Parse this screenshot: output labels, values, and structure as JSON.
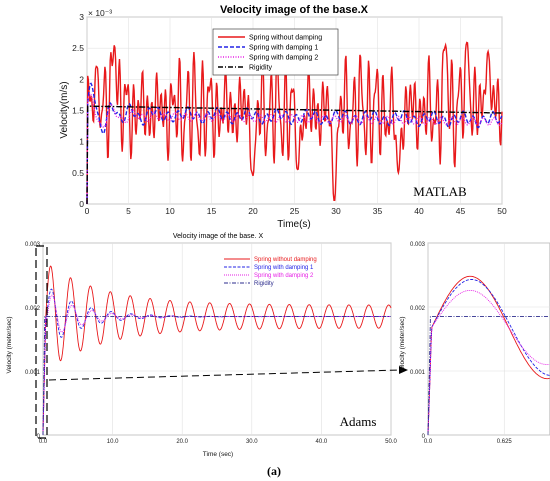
{
  "colors": {
    "spring_no_damping": "#e8191b",
    "spring_damping_1": "#2323e6",
    "spring_damping_2": "#e61ee6",
    "rigidity": "#000000",
    "adams_rigidity": "#2b2b8c"
  },
  "chart_data": [
    {
      "id": "matlab",
      "type": "line",
      "title": "Velocity image of the base.X",
      "xlabel": "Time(s)",
      "ylabel": "Velocity(m/s)",
      "exponent_label": "× 10⁻³",
      "tag": "MATLAB",
      "xlim": [
        0,
        50
      ],
      "ylim": [
        0,
        3
      ],
      "xticks": [
        "0",
        "5",
        "10",
        "15",
        "20",
        "25",
        "30",
        "35",
        "40",
        "45",
        "50"
      ],
      "yticks": [
        "0",
        "0.5",
        "1",
        "1.5",
        "2",
        "2.5",
        "3"
      ],
      "grid": true,
      "legend_position": "top-center",
      "series": [
        {
          "name": "Spring without damping",
          "style": "solid"
        },
        {
          "name": "Spring with damping 1",
          "style": "dashed"
        },
        {
          "name": "Spring with damping 2",
          "style": "dotted"
        },
        {
          "name": "Rigidity",
          "style": "dashdot"
        }
      ]
    },
    {
      "id": "adams",
      "type": "line",
      "title": "Velocity image of the base. X",
      "xlabel": "Time (sec)",
      "ylabel": "Velocity (meter/sec)",
      "tag": "Adams",
      "xlim": [
        0,
        50
      ],
      "ylim": [
        0,
        0.003
      ],
      "xticks": [
        "0.0",
        "10.0",
        "20.0",
        "30.0",
        "40.0",
        "50.0"
      ],
      "yticks": [
        "0",
        "0.001",
        "0.002",
        "0.003"
      ],
      "grid": true,
      "legend_position": "top-right",
      "series": [
        {
          "name": "Spring without damping",
          "style": "solid"
        },
        {
          "name": "Spring with damping 1",
          "style": "dashed"
        },
        {
          "name": "Spring with damping 2",
          "style": "dotted"
        },
        {
          "name": "Rigidity",
          "style": "dashdot"
        }
      ]
    },
    {
      "id": "adams-zoom",
      "type": "line",
      "ylabel": "Velocity (meter/sec)",
      "xlim": [
        0,
        1
      ],
      "ylim": [
        0,
        0.003
      ],
      "xticks": [
        "0.0",
        "0.625"
      ],
      "yticks": [
        "0",
        "0.001",
        "0.002",
        "0.003"
      ],
      "grid": true
    }
  ],
  "caption": "(a)"
}
